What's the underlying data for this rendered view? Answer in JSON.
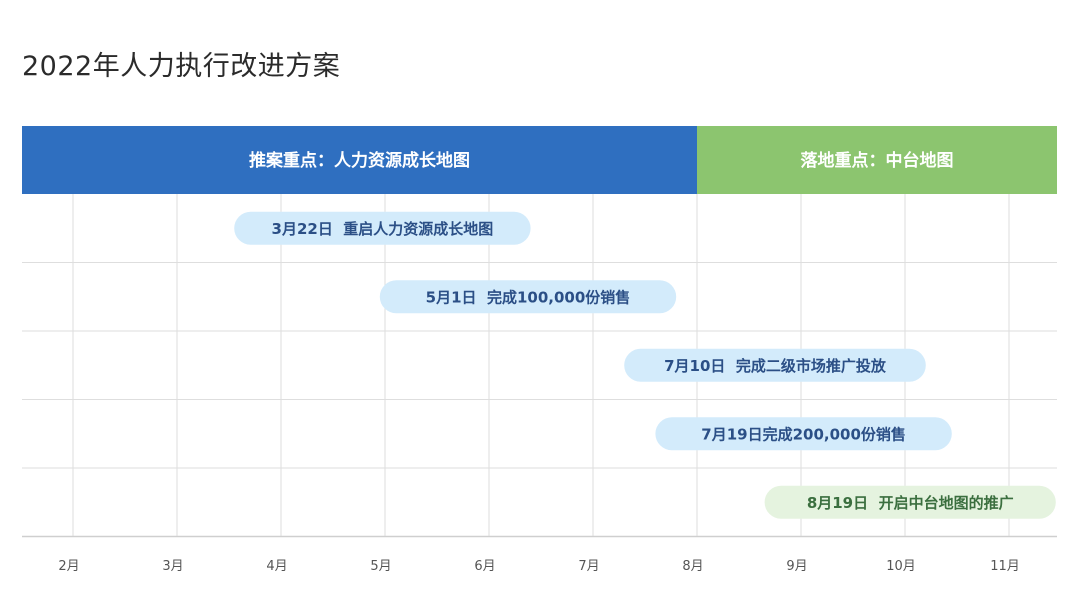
{
  "title": "2022年人力执行改进方案",
  "colors": {
    "phase_1": "#2f6fc0",
    "phase_2": "#8cc56f",
    "milestone_pill": "#d3ebfb",
    "milestone_text": "#2b4f86",
    "milestone_pill_alt": "#e5f3df",
    "milestone_text_alt": "#3b6f3f",
    "grid": "#dedede"
  },
  "chart_data": {
    "type": "timeline",
    "x_ticks": [
      "2月",
      "3月",
      "4月",
      "5月",
      "6月",
      "7月",
      "8月",
      "9月",
      "10月",
      "11月"
    ],
    "phases": [
      {
        "label": "推案重点：人力资源成长地图",
        "start_month": 1.5,
        "end_month": 8
      },
      {
        "label": "落地重点：中台地图",
        "start_month": 8,
        "end_month": 11.5
      }
    ],
    "milestones": [
      {
        "label": "3月22日  重启人力资源成长地图",
        "date": "3月22日",
        "row": 1,
        "start_month": 3.55,
        "end_month": 6.4
      },
      {
        "label": "5月1日  完成100,000份销售",
        "date": "5月1日",
        "row": 2,
        "start_month": 4.95,
        "end_month": 7.8
      },
      {
        "label": "7月10日  完成二级市场推广投放",
        "date": "7月10日",
        "row": 3,
        "start_month": 7.3,
        "end_month": 10.2
      },
      {
        "label": "7月19日完成200,000份销售",
        "date": "7月19日",
        "row": 4,
        "start_month": 7.6,
        "end_month": 10.45
      },
      {
        "label": "8月19日  开启中台地图的推广",
        "date": "8月19日",
        "row": 5,
        "start_month": 8.65,
        "end_month": 11.45
      }
    ]
  }
}
